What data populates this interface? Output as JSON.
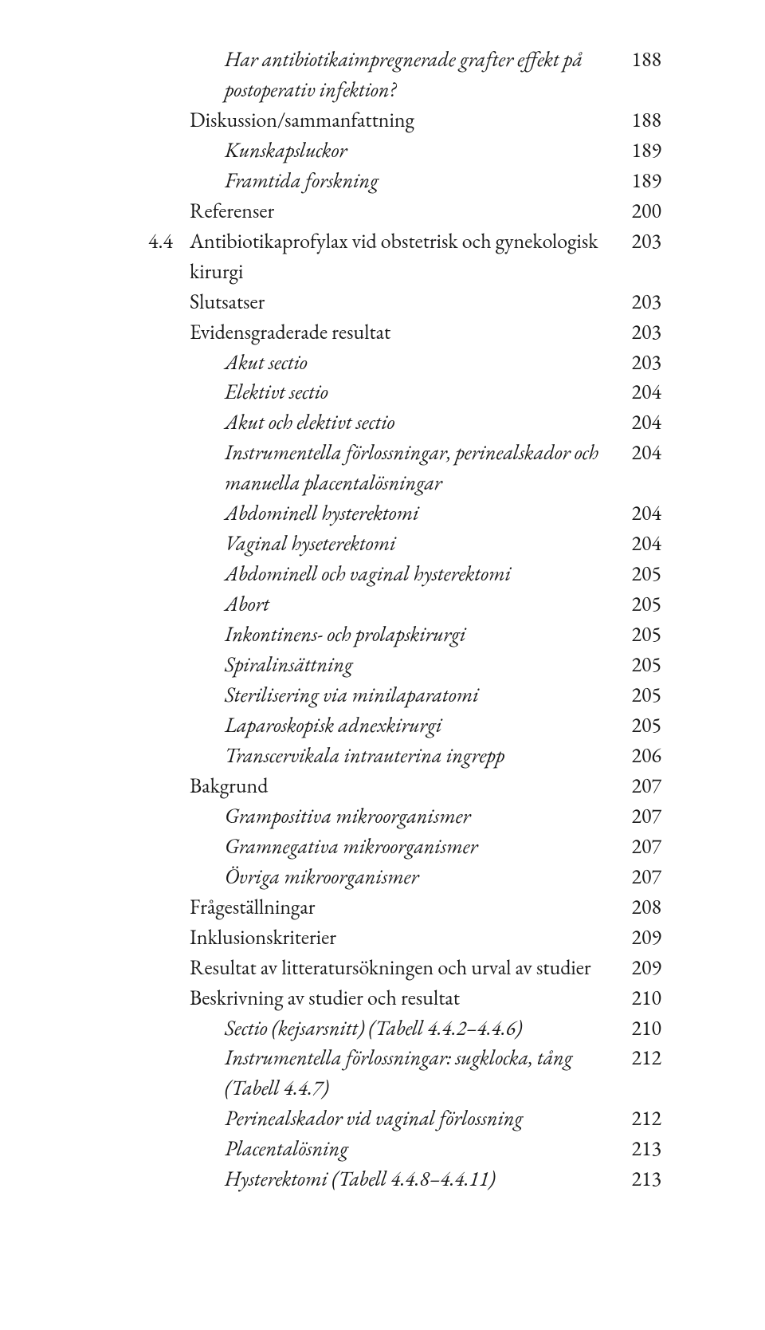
{
  "toc": [
    {
      "label": "Har antibiotikaimpregnerade grafter effekt på postoperativ infektion?",
      "page": "188",
      "italic": true,
      "indent": 2,
      "multiline": true
    },
    {
      "label": "Diskussion/sammanfattning",
      "page": "188",
      "italic": false,
      "indent": 1
    },
    {
      "label": "Kunskapsluckor",
      "page": "189",
      "italic": true,
      "indent": 2
    },
    {
      "label": "Framtida forskning",
      "page": "189",
      "italic": true,
      "indent": 2
    },
    {
      "label": "Referenser",
      "page": "200",
      "italic": false,
      "indent": 1
    },
    {
      "chapnum": "4.4",
      "label": "Antibiotikaprofylax vid obstetrisk och gynekologisk kirurgi",
      "page": "203",
      "italic": false,
      "indent": 1,
      "multiline": true
    },
    {
      "label": "Slutsatser",
      "page": "203",
      "italic": false,
      "indent": 1
    },
    {
      "label": "Evidensgraderade resultat",
      "page": "203",
      "italic": false,
      "indent": 1
    },
    {
      "label": "Akut sectio",
      "page": "203",
      "italic": true,
      "indent": 2
    },
    {
      "label": "Elektivt sectio",
      "page": "204",
      "italic": true,
      "indent": 2
    },
    {
      "label": "Akut och elektivt sectio",
      "page": "204",
      "italic": true,
      "indent": 2
    },
    {
      "label": "Instrumentella förlossningar, perinealskador och manuella placentalösningar",
      "page": "204",
      "italic": true,
      "indent": 2,
      "multiline": true
    },
    {
      "label": "Abdominell hysterektomi",
      "page": "204",
      "italic": true,
      "indent": 2
    },
    {
      "label": "Vaginal hyseterektomi",
      "page": "204",
      "italic": true,
      "indent": 2
    },
    {
      "label": "Abdominell och vaginal hysterektomi",
      "page": "205",
      "italic": true,
      "indent": 2
    },
    {
      "label": "Abort",
      "page": "205",
      "italic": true,
      "indent": 2
    },
    {
      "label": "Inkontinens- och prolapskirurgi",
      "page": "205",
      "italic": true,
      "indent": 2
    },
    {
      "label": "Spiralinsättning",
      "page": "205",
      "italic": true,
      "indent": 2
    },
    {
      "label": "Sterilisering via minilaparatomi",
      "page": "205",
      "italic": true,
      "indent": 2
    },
    {
      "label": "Laparoskopisk adnexkirurgi",
      "page": "205",
      "italic": true,
      "indent": 2
    },
    {
      "label": "Transcervikala intrauterina ingrepp",
      "page": "206",
      "italic": true,
      "indent": 2
    },
    {
      "label": "Bakgrund",
      "page": "207",
      "italic": false,
      "indent": 1
    },
    {
      "label": "Grampositiva mikroorganismer",
      "page": "207",
      "italic": true,
      "indent": 2
    },
    {
      "label": "Gramnegativa mikroorganismer",
      "page": "207",
      "italic": true,
      "indent": 2
    },
    {
      "label": "Övriga mikroorganismer",
      "page": "207",
      "italic": true,
      "indent": 2
    },
    {
      "label": "Frågeställningar",
      "page": "208",
      "italic": false,
      "indent": 1
    },
    {
      "label": "Inklusionskriterier",
      "page": "209",
      "italic": false,
      "indent": 1
    },
    {
      "label": "Resultat av litteratursökningen och urval av studier",
      "page": "209",
      "italic": false,
      "indent": 1
    },
    {
      "label": "Beskrivning av studier och resultat",
      "page": "210",
      "italic": false,
      "indent": 1
    },
    {
      "label": "Sectio (kejsarsnitt) (Tabell 4.4.2–4.4.6)",
      "page": "210",
      "italic": true,
      "indent": 2
    },
    {
      "label": "Instrumentella förlossningar: sugklocka, tång (Tabell 4.4.7)",
      "page": "212",
      "italic": true,
      "indent": 2,
      "multiline": true
    },
    {
      "label": "Perinealskador vid vaginal förlossning",
      "page": "212",
      "italic": true,
      "indent": 2
    },
    {
      "label": "Placentalösning",
      "page": "213",
      "italic": true,
      "indent": 2
    },
    {
      "label": "Hysterektomi (Tabell 4.4.8–4.4.11)",
      "page": "213",
      "italic": true,
      "indent": 2
    }
  ]
}
